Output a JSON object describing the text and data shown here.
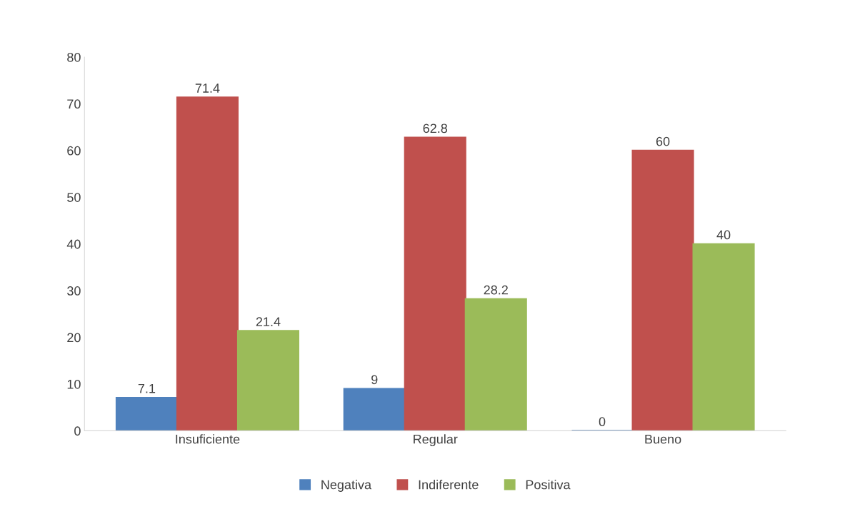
{
  "chart_data": {
    "type": "bar",
    "categories": [
      "Insuficiente",
      "Regular",
      "Bueno"
    ],
    "series": [
      {
        "name": "Negativa",
        "color": "#4f81bd",
        "values": [
          7.1,
          9,
          0
        ]
      },
      {
        "name": "Indiferente",
        "color": "#c0504d",
        "values": [
          71.4,
          62.8,
          60
        ]
      },
      {
        "name": "Positiva",
        "color": "#9bbb59",
        "values": [
          21.4,
          28.2,
          40
        ]
      }
    ],
    "ylim": [
      0,
      80
    ],
    "yticks": [
      0,
      10,
      20,
      30,
      40,
      50,
      60,
      70,
      80
    ],
    "data_labels": true,
    "grid": false,
    "legend": "bottom"
  }
}
